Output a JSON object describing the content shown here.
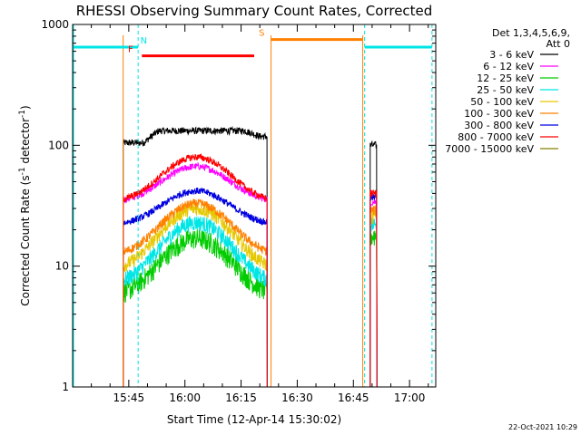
{
  "chart_data": {
    "type": "line",
    "title": "RHESSI Observing Summary Count Rates, Corrected",
    "xlabel": "Start Time (12-Apr-14 15:30:02)",
    "ylabel_main": "Corrected Count Rate (s",
    "ylabel_sup1": "-1",
    "ylabel_mid": " detector",
    "ylabel_sup2": "-1",
    "ylabel_end": ")",
    "y_scale": "log",
    "ylim": [
      1,
      1000
    ],
    "xlim_minutes": [
      0,
      97
    ],
    "y_ticks": [
      {
        "value": 1,
        "label": "1"
      },
      {
        "value": 10,
        "label": "10"
      },
      {
        "value": 100,
        "label": "100"
      },
      {
        "value": 1000,
        "label": "1000"
      }
    ],
    "x_ticks": [
      {
        "minute": 15,
        "label": "15:45"
      },
      {
        "minute": 30,
        "label": "16:00"
      },
      {
        "minute": 45,
        "label": "16:15"
      },
      {
        "minute": 60,
        "label": "16:30"
      },
      {
        "minute": 75,
        "label": "16:45"
      },
      {
        "minute": 90,
        "label": "17:00"
      }
    ],
    "detector_info": [
      "Det 1,3,4,5,6,9,",
      "Att 0"
    ],
    "legend_placement": "right",
    "series": [
      {
        "name": "3 - 6 keV",
        "color": "#000000",
        "base": 105,
        "peak": 132,
        "noise": 0.03,
        "post": 100
      },
      {
        "name": "6 - 12 keV",
        "color": "#ff00ff",
        "base": 34,
        "peak": 67,
        "noise": 0.03,
        "post": 34
      },
      {
        "name": "12 - 25 keV",
        "color": "#00cc00",
        "base": 5.6,
        "peak": 17,
        "noise": 0.09,
        "post": 18
      },
      {
        "name": "25 - 50 keV",
        "color": "#00e5e5",
        "base": 7.0,
        "peak": 23,
        "noise": 0.07,
        "post": 22
      },
      {
        "name": "50 - 100 keV",
        "color": "#e6c800",
        "base": 9.2,
        "peak": 30,
        "noise": 0.06,
        "post": 26
      },
      {
        "name": "100 - 300 keV",
        "color": "#ff8000",
        "base": 12.2,
        "peak": 33,
        "noise": 0.04,
        "post": 29
      },
      {
        "name": "300 - 800 keV",
        "color": "#0000e0",
        "base": 22,
        "peak": 42,
        "noise": 0.03,
        "post": 37
      },
      {
        "name": "800 - 7000 keV",
        "color": "#ff0000",
        "base": 34,
        "peak": 80,
        "noise": 0.03,
        "post": 40
      },
      {
        "name": "7000 - 15000 keV",
        "color": "#808000",
        "base": 0,
        "peak": 0,
        "noise": 0,
        "post": 0
      }
    ],
    "data_intervals_minutes": [
      [
        13.5,
        52.0
      ],
      [
        79.5,
        81.3
      ]
    ],
    "flare_peak_minute": 33,
    "attenuator_bars": [
      {
        "label": "N",
        "color": "#00e5e5",
        "y": 650,
        "segments": [
          [
            0,
            17.5
          ],
          [
            78,
            96
          ]
        ],
        "label_minute": 19
      },
      {
        "label": "F",
        "color": "#ff0000",
        "y": 550,
        "segments": [
          [
            18.5,
            48.5
          ]
        ],
        "label_minute": 15.5
      },
      {
        "label": "S",
        "color": "#ff8000",
        "y": 750,
        "segments": [
          [
            53,
            77.5
          ]
        ],
        "label_minute": 50.5
      }
    ],
    "vlines_cyan_minutes": [
      17.5,
      78,
      96
    ],
    "vlines_cyan_solid_minutes": [
      0
    ],
    "vlines_orange_minutes": [
      13.5,
      53,
      77.5
    ]
  },
  "timestamp": "22-Oct-2021 10:29"
}
